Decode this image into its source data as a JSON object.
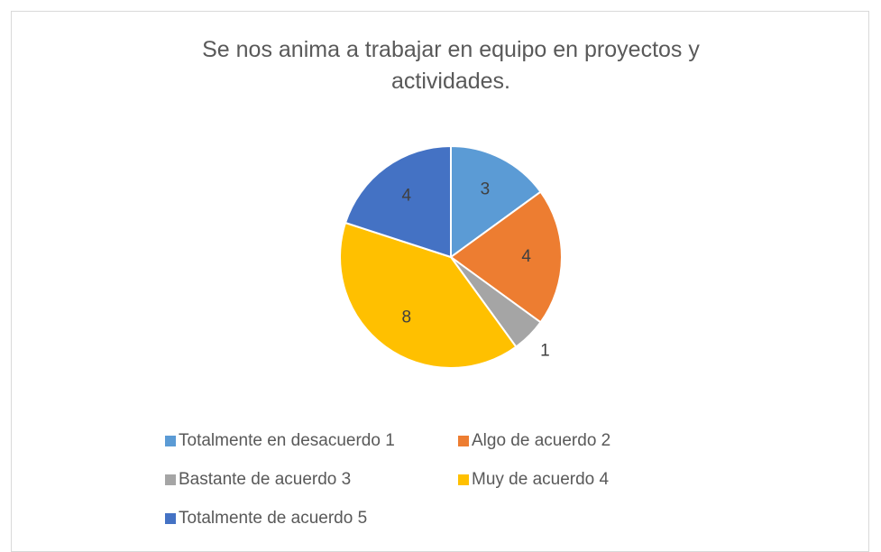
{
  "chart_data": {
    "type": "pie",
    "title": "Se nos anima a trabajar en equipo en proyectos y actividades.",
    "categories": [
      "Totalmente en desacuerdo 1",
      "Algo de acuerdo 2",
      "Bastante de acuerdo 3",
      "Muy de acuerdo 4",
      "Totalmente de acuerdo 5"
    ],
    "values": [
      3,
      4,
      1,
      8,
      4
    ],
    "colors": [
      "#5b9bd5",
      "#ed7d31",
      "#a5a5a5",
      "#ffc000",
      "#4472c4"
    ],
    "legend": "bottom"
  }
}
